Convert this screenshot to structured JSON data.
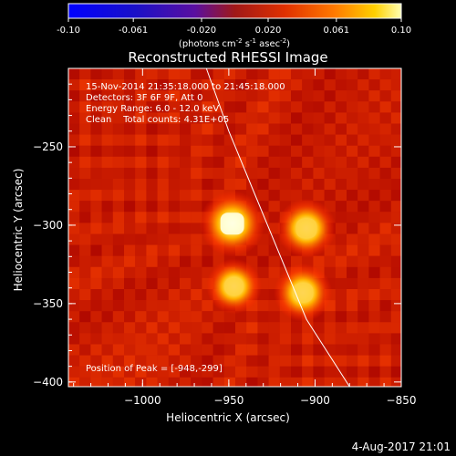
{
  "colorbar": {
    "tick_labels": [
      "-0.10",
      "-0.061",
      "-0.020",
      "0.020",
      "0.061",
      "0.10"
    ],
    "tick_values": [
      -0.1,
      -0.061,
      -0.02,
      0.02,
      0.061,
      0.1
    ],
    "range": [
      -0.1,
      0.1
    ],
    "units_main": "(photons cm",
    "units_sup1": "-2",
    "units_mid1": " s",
    "units_sup2": "-1",
    "units_mid2": " asec",
    "units_sup3": "-2",
    "units_close": ")"
  },
  "annotations": {
    "line1": "15-Nov-2014 21:35:18.000 to 21:45:18.000",
    "line2": "Detectors: 3F 6F 9F, Att 0",
    "line3": "Energy Range: 6.0 - 12.0 keV",
    "line4": "Clean    Total counts: 4.31E+05",
    "peak": "Position of Peak = [-948,-299]"
  },
  "footer": {
    "timestamp": "4-Aug-2017 21:01"
  },
  "chart_data": {
    "type": "heatmap",
    "title": "Reconstructed RHESSI Image",
    "xlabel": "Heliocentric X (arcsec)",
    "ylabel": "Heliocentric Y (arcsec)",
    "xlim": [
      -1043,
      -850
    ],
    "ylim": [
      -403,
      -200
    ],
    "xticks": [
      -1000,
      -950,
      -900,
      -850
    ],
    "xtick_labels": [
      "−1000",
      "−950",
      "−900",
      "−850"
    ],
    "yticks": [
      -250,
      -300,
      -350,
      -400
    ],
    "ytick_labels": [
      "−250",
      "−300",
      "−350",
      "−400"
    ],
    "background_level": 0.9,
    "sources": [
      {
        "x": -948,
        "y": -299,
        "peak": 1.0
      },
      {
        "x": -905,
        "y": -302,
        "peak": 0.88
      },
      {
        "x": -947,
        "y": -339,
        "peak": 0.8
      },
      {
        "x": -907,
        "y": -343,
        "peak": 0.86
      }
    ],
    "limb_curve": [
      [
        -963,
        -200
      ],
      [
        -950,
        -240
      ],
      [
        -935,
        -280
      ],
      [
        -920,
        -320
      ],
      [
        -905,
        -360
      ],
      [
        -880,
        -403
      ]
    ]
  }
}
